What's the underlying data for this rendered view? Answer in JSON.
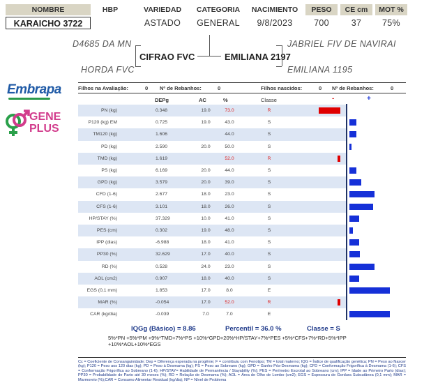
{
  "header": {
    "columns": [
      "NOMBRE",
      "HBP",
      "VARIEDAD",
      "CATEGORIA",
      "NACIMIENTO",
      "PESO",
      "CE cm",
      "MOT %"
    ],
    "values": {
      "nombre": "KARAICHO 3722",
      "hbp": "",
      "variedad": "ASTADO",
      "categoria": "GENERAL",
      "nacimiento": "9/8/2023",
      "peso": "700",
      "ce": "37",
      "mot": "75%"
    }
  },
  "pedigree": {
    "sire": "CIFRAO FVC",
    "dam": "EMILIANA 2197",
    "sire_sire": "D4685 DA MN",
    "sire_dam": "HORDA FVC",
    "dam_sire": "JABRIEL FIV DE NAVIRAI",
    "dam_dam": "EMILIANA 1195"
  },
  "logos": {
    "embrapa": "Embrapa",
    "gene_plus_line1": "GENE",
    "gene_plus_line2": "PLUS"
  },
  "stats": {
    "filhos_label": "Filhos na Avaliação:",
    "filhos_value": "0",
    "rebanhos_label": "Nº de Rebanhos:",
    "rebanhos_value": "0",
    "nascidos_label": "Filhos nascidos:",
    "nascidos_value": "0",
    "rebanhos2_label": "Nº de Rebanhos:",
    "rebanhos2_value": "0"
  },
  "table_headers": {
    "depg": "DEPg",
    "ac": "AC",
    "pct": "%",
    "classe": "Classe",
    "minus": "-",
    "plus": "+"
  },
  "traits": [
    {
      "name": "PN (kg)",
      "depg": "0.348",
      "ac": "19.0",
      "pct": "73.0",
      "cls": "R",
      "red": true,
      "bar": -0.34
    },
    {
      "name": "P120 (kg) EM",
      "depg": "0.725",
      "ac": "19.0",
      "pct": "43.0",
      "cls": "S",
      "red": false,
      "bar": 0.11
    },
    {
      "name": "TM120 (kg)",
      "depg": "1.606",
      "ac": "",
      "pct": "44.0",
      "cls": "S",
      "red": false,
      "bar": 0.11
    },
    {
      "name": "PD (kg)",
      "depg": "2.590",
      "ac": "20.0",
      "pct": "50.0",
      "cls": "S",
      "red": false,
      "bar": 0.03
    },
    {
      "name": "TMD (kg)",
      "depg": "1.619",
      "ac": "",
      "pct": "52.0",
      "cls": "R",
      "red": true,
      "bar": -0.04
    },
    {
      "name": "PS (kg)",
      "depg": "6.169",
      "ac": "20.0",
      "pct": "44.0",
      "cls": "S",
      "red": false,
      "bar": 0.11
    },
    {
      "name": "GPD (kg)",
      "depg": "3.579",
      "ac": "20.0",
      "pct": "39.0",
      "cls": "S",
      "red": false,
      "bar": 0.19
    },
    {
      "name": "CFD (1-6)",
      "depg": "2.677",
      "ac": "18.0",
      "pct": "23.0",
      "cls": "S",
      "red": false,
      "bar": 0.4
    },
    {
      "name": "CFS (1-6)",
      "depg": "3.101",
      "ac": "18.0",
      "pct": "26.0",
      "cls": "S",
      "red": false,
      "bar": 0.38
    },
    {
      "name": "HP/STAY (%)",
      "depg": "37.329",
      "ac": "10.0",
      "pct": "41.0",
      "cls": "S",
      "red": false,
      "bar": 0.15
    },
    {
      "name": "PES (cm)",
      "depg": "0.302",
      "ac": "19.0",
      "pct": "48.0",
      "cls": "S",
      "red": false,
      "bar": 0.05
    },
    {
      "name": "IPP (dias)",
      "depg": "-6.988",
      "ac": "18.0",
      "pct": "41.0",
      "cls": "S",
      "red": false,
      "bar": 0.15
    },
    {
      "name": "PP30 (%)",
      "depg": "32.629",
      "ac": "17.0",
      "pct": "40.0",
      "cls": "S",
      "red": false,
      "bar": 0.17
    },
    {
      "name": "RD (%)",
      "depg": "0.528",
      "ac": "24.0",
      "pct": "23.0",
      "cls": "S",
      "red": false,
      "bar": 0.4
    },
    {
      "name": "AOL (cm2)",
      "depg": "0.907",
      "ac": "18.0",
      "pct": "40.0",
      "cls": "S",
      "red": false,
      "bar": 0.15
    },
    {
      "name": "EGS (0,1 mm)",
      "depg": "1.853",
      "ac": "17.0",
      "pct": "8.0",
      "cls": "E",
      "red": false,
      "bar": 0.64
    },
    {
      "name": "MAR (%)",
      "depg": "-0.054",
      "ac": "17.0",
      "pct": "52.0",
      "cls": "R",
      "red": true,
      "bar": -0.04
    },
    {
      "name": "CAR (kg/dia)",
      "depg": "-0.039",
      "ac": "7.0",
      "pct": "7.0",
      "cls": "E",
      "red": false,
      "bar": 0.64
    }
  ],
  "summary": {
    "iqgg": "IQGg (Básico) = 8.86",
    "percentil": "Percentil = 36.0 %",
    "classe": "Classe = S",
    "formula": "5%*PN +5%*PM +9%*TMD+7%*PS +10%*GPD+20%*HP/STAY+7%*PES +5%*CFS+7%*RD+5%*IPP +10%*AOL+10%*EGS"
  },
  "legend": "Cc = Coeficiente de Consanguinidade; Dep = Diferença esperada na progênie; F = contribuiu com Fenotipo; TM = total materno; IQG = Índice de qualificação genética; PN = Peso ao Nascer (kg); P120 = Peso aos 120 dias (kg); PD = Peso à Desmama (kg); PS = Peso ao Sobreano (kg); GPD = Ganho Pós-Desmama (kg); CFD = Conformação Frigorífica à Desmama (1-6); CFS = Conformação Frigorífica ao Sobreano (1-6); HP/STAY= Habilidade de Permanência / Stayability (%); PES = Perímetro Escrotal ao Sobreano (cm); IPP = Idade ao Primeiro Parto (dias); PP30 = Probabilidade de Parto até 30 meses (%); RD = Relação de Desmama (%); AOL = Área de Olho de Lombo (cm2); EGS = Espessura de Gordura Subcutânea (0,1 mm); MAR = Marmoreio (%);CAR = Consumo Alimentar Residual (kg/dia); NP = Nível de Problema",
  "colors": {
    "header_bg": "#d9d5c4",
    "row_alt": "#dde6f4",
    "bar_pos": "#1530d8",
    "bar_neg": "#e00000",
    "axis": "#1f3366"
  }
}
